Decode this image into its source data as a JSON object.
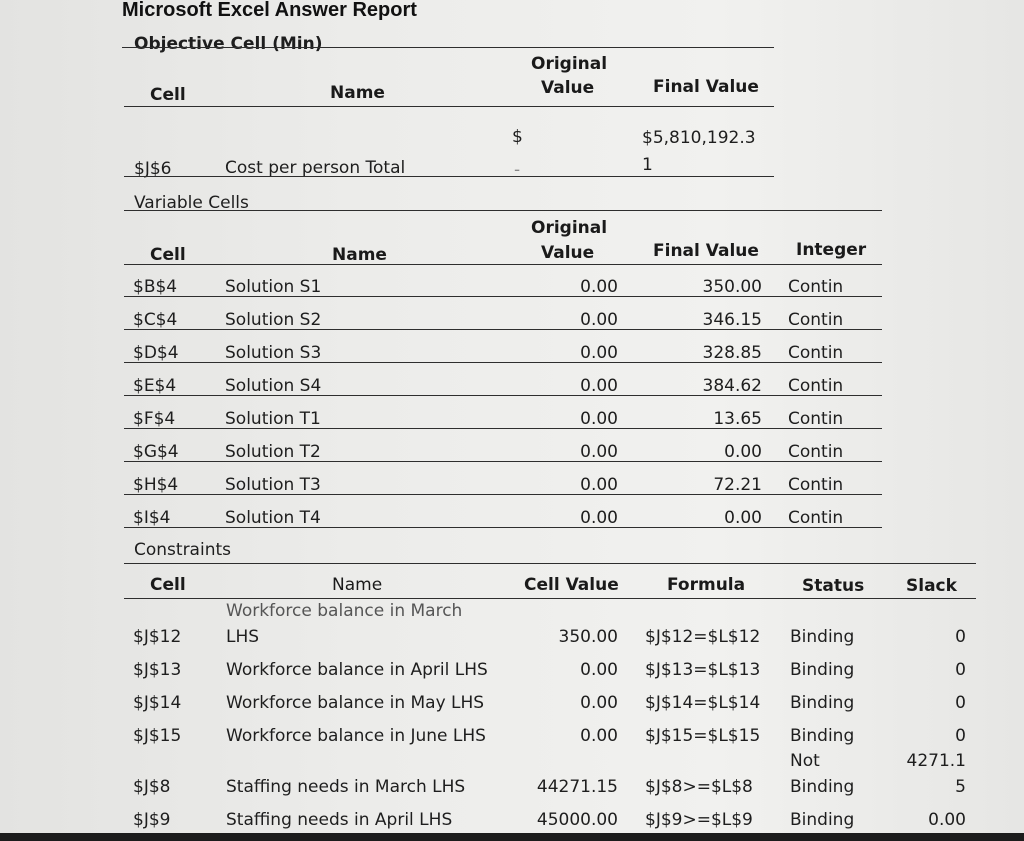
{
  "report": {
    "title": "Microsoft Excel Answer Report",
    "objective_section": "Objective Cell (Min)",
    "variable_section": "Variable Cells",
    "constraints_section": "Constraints"
  },
  "headers": {
    "cell": "Cell",
    "name": "Name",
    "original_1": "Original",
    "original_2": "Value",
    "final_value": "Final Value",
    "integer": "Integer",
    "cell_value": "Cell Value",
    "formula": "Formula",
    "status": "Status",
    "slack": "Slack"
  },
  "objective": {
    "cell": "$J$6",
    "name": "Cost per person Total",
    "original_symbol": "$",
    "original_dash": "-",
    "final_line1": "$5,810,192.3",
    "final_line2": "1"
  },
  "variables": [
    {
      "cell": "$B$4",
      "name": "Solution S1",
      "original": "0.00",
      "final": "350.00",
      "integer": "Contin"
    },
    {
      "cell": "$C$4",
      "name": "Solution S2",
      "original": "0.00",
      "final": "346.15",
      "integer": "Contin"
    },
    {
      "cell": "$D$4",
      "name": "Solution S3",
      "original": "0.00",
      "final": "328.85",
      "integer": "Contin"
    },
    {
      "cell": "$E$4",
      "name": "Solution S4",
      "original": "0.00",
      "final": "384.62",
      "integer": "Contin"
    },
    {
      "cell": "$F$4",
      "name": "Solution T1",
      "original": "0.00",
      "final": "13.65",
      "integer": "Contin"
    },
    {
      "cell": "$G$4",
      "name": "Solution T2",
      "original": "0.00",
      "final": "0.00",
      "integer": "Contin"
    },
    {
      "cell": "$H$4",
      "name": "Solution T3",
      "original": "0.00",
      "final": "72.21",
      "integer": "Contin"
    },
    {
      "cell": "$I$4",
      "name": "Solution T4",
      "original": "0.00",
      "final": "0.00",
      "integer": "Contin"
    }
  ],
  "constraints": [
    {
      "cell": "$J$12",
      "name_line1": "Workforce balance in March",
      "name_line2": "LHS",
      "value": "350.00",
      "formula": "$J$12=$L$12",
      "status_line1": "",
      "status_line2": "Binding",
      "slack_line1": "",
      "slack_line2": "0"
    },
    {
      "cell": "$J$13",
      "name_line1": "",
      "name_line2": "Workforce balance in April LHS",
      "value": "0.00",
      "formula": "$J$13=$L$13",
      "status_line1": "",
      "status_line2": "Binding",
      "slack_line1": "",
      "slack_line2": "0"
    },
    {
      "cell": "$J$14",
      "name_line1": "",
      "name_line2": "Workforce balance in May LHS",
      "value": "0.00",
      "formula": "$J$14=$L$14",
      "status_line1": "",
      "status_line2": "Binding",
      "slack_line1": "",
      "slack_line2": "0"
    },
    {
      "cell": "$J$15",
      "name_line1": "",
      "name_line2": "Workforce balance in June LHS",
      "value": "0.00",
      "formula": "$J$15=$L$15",
      "status_line1": "",
      "status_line2": "Binding",
      "slack_line1": "",
      "slack_line2": "0"
    },
    {
      "cell": "$J$8",
      "name_line1": "",
      "name_line2": "Staffing needs in March LHS",
      "value": "44271.15",
      "formula": "$J$8>=$L$8",
      "status_line1": "Not",
      "status_line2": "Binding",
      "slack_line1": "4271.1",
      "slack_line2": "5"
    },
    {
      "cell": "$J$9",
      "name_line1": "",
      "name_line2": "Staffing needs in April LHS",
      "value": "45000.00",
      "formula": "$J$9>=$L$9",
      "status_line1": "",
      "status_line2": "Binding",
      "slack_line1": "",
      "slack_line2": "0.00"
    }
  ]
}
